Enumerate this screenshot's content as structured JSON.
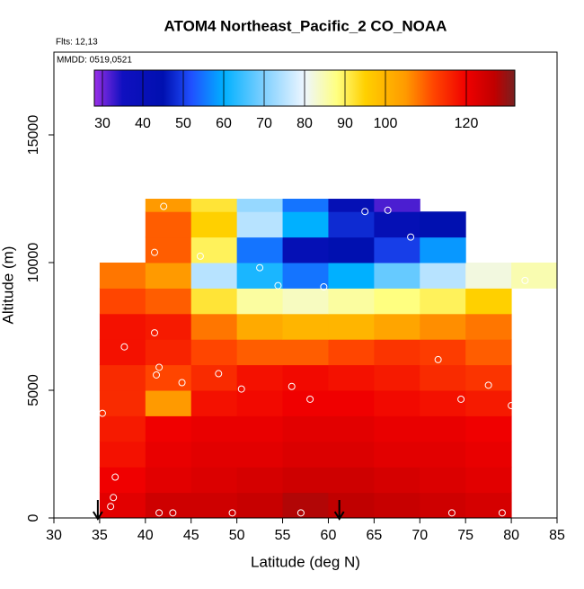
{
  "chart_data": {
    "type": "heatmap",
    "title": "ATOM4 Northeast_Pacific_2 CO_NOAA",
    "flights": "Flts: 12,13",
    "dates": "MMDD: 0519,0521",
    "x_label": "Latitude (deg N)",
    "y_label": "Altitude (m)",
    "xlim": [
      30,
      85
    ],
    "xticks": [
      30,
      35,
      40,
      45,
      50,
      55,
      60,
      65,
      70,
      75,
      80,
      85
    ],
    "ylim": [
      0,
      18240
    ],
    "yticks": [
      0,
      5000,
      10000,
      15000
    ],
    "xbins": [
      35,
      40,
      45,
      50,
      55,
      60,
      65,
      70,
      75,
      80,
      85
    ],
    "ybins": [
      0,
      1000,
      2000,
      3000,
      4000,
      5000,
      6000,
      7000,
      8000,
      9000,
      10000,
      11000,
      12000,
      12500
    ],
    "z": [
      [
        122,
        125,
        125,
        126,
        128,
        127,
        126,
        125,
        124,
        null
      ],
      [
        120,
        122,
        123,
        124,
        125,
        125,
        124,
        123,
        122,
        null
      ],
      [
        118,
        121,
        122,
        122,
        123,
        123,
        122,
        122,
        121,
        null
      ],
      [
        117,
        120,
        121,
        121,
        122,
        122,
        121,
        121,
        120,
        null
      ],
      [
        115,
        105,
        118,
        119,
        120,
        120,
        119,
        118,
        117,
        null
      ],
      [
        115,
        112,
        115,
        118,
        119,
        118,
        117,
        115,
        114,
        null
      ],
      [
        118,
        116,
        112,
        110,
        110,
        112,
        114,
        113,
        110,
        null
      ],
      [
        118,
        117,
        108,
        102,
        100,
        100,
        103,
        106,
        108,
        null
      ],
      [
        112,
        110,
        92,
        86,
        84,
        86,
        88,
        90,
        95,
        null
      ],
      [
        108,
        105,
        75,
        62,
        55,
        60,
        68,
        75,
        82,
        85
      ],
      [
        null,
        110,
        90,
        55,
        42,
        45,
        50,
        58,
        null,
        null
      ],
      [
        null,
        110,
        95,
        75,
        60,
        48,
        42,
        45,
        null,
        null
      ],
      [
        null,
        105,
        92,
        72,
        55,
        42,
        32,
        null,
        null,
        null
      ]
    ],
    "colorbar": {
      "lim": [
        28,
        132
      ],
      "ticks": [
        30,
        40,
        50,
        60,
        70,
        80,
        90,
        100,
        120
      ],
      "stops": [
        28,
        35,
        45,
        52,
        60,
        70,
        80,
        88,
        95,
        105,
        112,
        120,
        127,
        132
      ],
      "colors": [
        "#9a30e8",
        "#1010c0",
        "#0010b0",
        "#2050ff",
        "#00b0ff",
        "#80d0ff",
        "#eef6ff",
        "#ffff80",
        "#ffd000",
        "#ff9a00",
        "#ff4500",
        "#f00000",
        "#c00000",
        "#782020"
      ]
    },
    "points": {
      "x": [
        42,
        64,
        66.5,
        69,
        41,
        46,
        52.5,
        54.5,
        59.5,
        81.5,
        41,
        37.7,
        41.5,
        41.2,
        48,
        44,
        72,
        50.5,
        56,
        58,
        74.5,
        77.5,
        80,
        35.3,
        36.7,
        36.5,
        36.2,
        41.5,
        43,
        49.5,
        57,
        73.5,
        79
      ],
      "y": [
        12200,
        12000,
        12050,
        11000,
        10400,
        10250,
        9800,
        9100,
        9050,
        9300,
        7250,
        6700,
        5900,
        5600,
        5650,
        5300,
        6200,
        5050,
        5150,
        4650,
        4650,
        5200,
        4400,
        4100,
        1600,
        800,
        450,
        200,
        200,
        200,
        200,
        200,
        200
      ]
    },
    "arrows_x": [
      34.8,
      61.2
    ]
  }
}
